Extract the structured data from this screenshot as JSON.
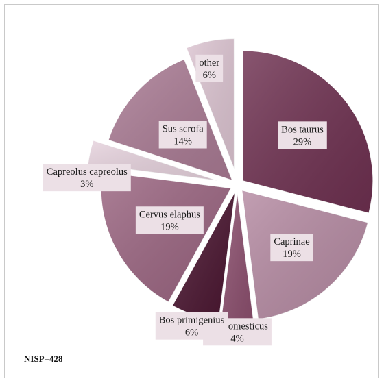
{
  "chart_data": {
    "type": "pie",
    "title": "",
    "note": "NISP=428",
    "slices": [
      {
        "label": "Bos taurus",
        "value": 29,
        "display": "29%",
        "color": "#6e3050",
        "label_bg": "#ece0e6"
      },
      {
        "label": "Caprinae",
        "value": 19,
        "display": "19%",
        "color": "#b58aa2",
        "label_bg": "#ece0e6"
      },
      {
        "label": "Sus domesticus",
        "value": 4,
        "display": "4%",
        "color": "#8c4f6e",
        "label_bg": "#ece0e6"
      },
      {
        "label": "Bos primigenius",
        "value": 6,
        "display": "6%",
        "color": "#4a1530",
        "label_bg": "#ece0e6"
      },
      {
        "label": "Cervus elaphus",
        "value": 19,
        "display": "19%",
        "color": "#9a6480",
        "label_bg": "#ece0e6"
      },
      {
        "label": "Capreolus capreolus",
        "value": 3,
        "display": "3%",
        "color": "#e6d2dd",
        "label_bg": "#ece0e6"
      },
      {
        "label": "Sus scrofa",
        "value": 14,
        "display": "14%",
        "color": "#a97a93",
        "label_bg": "#ece0e6"
      },
      {
        "label": "other",
        "value": 6,
        "display": "6%",
        "color": "#dcc4d1",
        "label_bg": "#ece0e6"
      }
    ]
  }
}
